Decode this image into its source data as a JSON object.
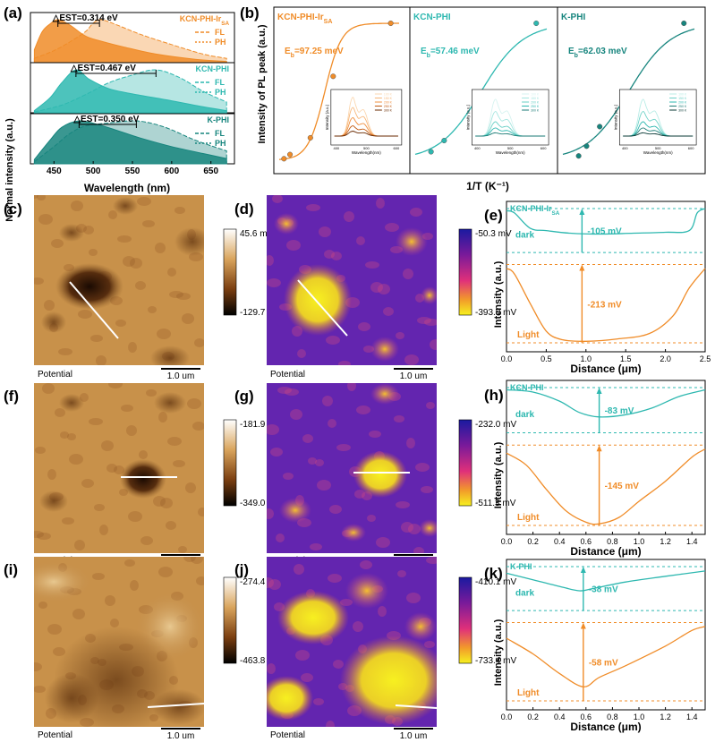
{
  "colors": {
    "orange": "#F08C28",
    "teal": "#2EB8B0",
    "dteal": "#17857E"
  },
  "panels": {
    "a": "(a)",
    "b": "(b)",
    "c": "(c)",
    "d": "(d)",
    "e": "(e)",
    "f": "(f)",
    "g": "(g)",
    "h": "(h)",
    "i": "(i)",
    "j": "(j)",
    "k": "(k)"
  },
  "chart_data": [
    {
      "type": "area",
      "panel": "a",
      "xlabel": "Wavelength (nm)",
      "ylabel": "Normal intensity (a.u.)",
      "xlim": [
        420,
        680
      ],
      "xticks": [
        450,
        500,
        550,
        600,
        650
      ],
      "legend": [
        "FL",
        "PH"
      ],
      "subplots": [
        {
          "name": "KCN-PHI-Ir",
          "sub": "SA",
          "est": "△EST=0.314 eV",
          "color": "#F08C28",
          "fl_peak": 455,
          "ph_peak": 508,
          "FL": [
            [
              425,
              0.3
            ],
            [
              435,
              0.72
            ],
            [
              445,
              0.9
            ],
            [
              455,
              1.0
            ],
            [
              470,
              0.88
            ],
            [
              490,
              0.62
            ],
            [
              510,
              0.5
            ],
            [
              540,
              0.36
            ],
            [
              580,
              0.2
            ],
            [
              630,
              0.08
            ],
            [
              670,
              0.03
            ]
          ],
          "PH": [
            [
              425,
              0.1
            ],
            [
              450,
              0.28
            ],
            [
              470,
              0.48
            ],
            [
              490,
              0.72
            ],
            [
              500,
              0.92
            ],
            [
              510,
              1.0
            ],
            [
              530,
              0.88
            ],
            [
              560,
              0.66
            ],
            [
              600,
              0.42
            ],
            [
              640,
              0.2
            ],
            [
              670,
              0.1
            ]
          ]
        },
        {
          "name": "KCN-PHI",
          "est": "△EST=0.467 eV",
          "color": "#2EB8B0",
          "fl_peak": 478,
          "ph_peak": 580,
          "FL": [
            [
              425,
              0.05
            ],
            [
              445,
              0.35
            ],
            [
              460,
              0.7
            ],
            [
              478,
              1.0
            ],
            [
              495,
              0.78
            ],
            [
              520,
              0.56
            ],
            [
              550,
              0.44
            ],
            [
              600,
              0.28
            ],
            [
              640,
              0.14
            ],
            [
              670,
              0.05
            ]
          ],
          "PH": [
            [
              425,
              0.02
            ],
            [
              460,
              0.18
            ],
            [
              490,
              0.42
            ],
            [
              520,
              0.7
            ],
            [
              550,
              0.88
            ],
            [
              580,
              1.0
            ],
            [
              610,
              0.82
            ],
            [
              640,
              0.5
            ],
            [
              670,
              0.25
            ]
          ]
        },
        {
          "name": "K-PHI",
          "est": "△EST=0.350 eV",
          "color": "#17857E",
          "fl_peak": 482,
          "ph_peak": 555,
          "FL": [
            [
              425,
              0.1
            ],
            [
              445,
              0.55
            ],
            [
              460,
              0.85
            ],
            [
              482,
              1.0
            ],
            [
              505,
              0.92
            ],
            [
              530,
              0.78
            ],
            [
              560,
              0.6
            ],
            [
              600,
              0.4
            ],
            [
              640,
              0.24
            ],
            [
              670,
              0.12
            ]
          ],
          "PH": [
            [
              425,
              0.05
            ],
            [
              450,
              0.4
            ],
            [
              470,
              0.7
            ],
            [
              490,
              0.88
            ],
            [
              520,
              0.95
            ],
            [
              555,
              1.0
            ],
            [
              590,
              0.86
            ],
            [
              630,
              0.55
            ],
            [
              670,
              0.3
            ]
          ]
        }
      ]
    },
    {
      "type": "scatter",
      "panel": "b",
      "ylabel": "Intensity of PL peak (a.u.)",
      "xlabel": "1/T (K⁻¹)",
      "subplots": [
        {
          "name": "KCN-PHI-Ir",
          "sub": "SA",
          "eb": "E",
          "ebsub": "b",
          "ebval": "=97.25 meV",
          "color": "#F08C28",
          "points": [
            [
              0.04,
              0.03
            ],
            [
              0.09,
              0.06
            ],
            [
              0.26,
              0.18
            ],
            [
              0.45,
              0.62
            ],
            [
              0.93,
              1.0
            ]
          ],
          "inset_legend": [
            "100 K",
            "150 K",
            "200 K",
            "250 K",
            "300 K"
          ],
          "inset_x": "Wavelength(nm)",
          "inset_y": "Intensity (a.u.)",
          "inset_ticks": [
            "400",
            "500",
            "600"
          ]
        },
        {
          "name": "KCN-PHI",
          "eb": "E",
          "ebsub": "b",
          "ebval": "=57.46 meV",
          "color": "#2EB8B0",
          "points": [
            [
              0.12,
              0.08
            ],
            [
              0.22,
              0.16
            ],
            [
              0.52,
              0.48
            ],
            [
              0.92,
              1.0
            ]
          ],
          "inset_legend": [
            "100 K",
            "150 K",
            "200 K",
            "250 K",
            "300 K"
          ],
          "inset_x": "Wavelength(nm)",
          "inset_y": "Intensity (a.u.)",
          "inset_ticks": [
            "400",
            "500",
            "600"
          ]
        },
        {
          "name": "K-PHI",
          "eb": "E",
          "ebsub": "b",
          "ebval": "=62.03 meV",
          "color": "#17857E",
          "points": [
            [
              0.12,
              0.05
            ],
            [
              0.18,
              0.12
            ],
            [
              0.28,
              0.26
            ],
            [
              0.45,
              0.48
            ],
            [
              0.92,
              1.0
            ]
          ],
          "inset_legend": [
            "100 K",
            "150 K",
            "200 K",
            "250 K",
            "300 K"
          ],
          "inset_x": "Wavelength(nm)",
          "inset_y": "Intensity (a.u.)",
          "inset_ticks": [
            "400",
            "500",
            "600"
          ]
        }
      ]
    },
    {
      "type": "line",
      "panel": "e",
      "name": "KCN-PHI-Ir",
      "sub": "SA",
      "xlabel": "Distance (μm)",
      "ylabel": "Intensity (a.u.)",
      "xlim": [
        0,
        2.5
      ],
      "xticks": [
        "0.0",
        "0.5",
        "1.0",
        "1.5",
        "2.0",
        "2.5"
      ],
      "dark_label": "dark",
      "light_label": "Light",
      "dark_delta": "-105 mV",
      "light_delta": "-213 mV",
      "arrow_x": 0.95,
      "dark": [
        [
          0,
          0.95
        ],
        [
          0.1,
          0.9
        ],
        [
          0.3,
          0.55
        ],
        [
          0.5,
          0.5
        ],
        [
          0.8,
          0.44
        ],
        [
          1.2,
          0.42
        ],
        [
          1.6,
          0.44
        ],
        [
          2.0,
          0.46
        ],
        [
          2.3,
          0.5
        ],
        [
          2.4,
          0.9
        ],
        [
          2.5,
          1.0
        ]
      ],
      "light": [
        [
          0,
          0.95
        ],
        [
          0.1,
          0.88
        ],
        [
          0.3,
          0.5
        ],
        [
          0.5,
          0.15
        ],
        [
          0.7,
          0.04
        ],
        [
          1.0,
          0.02
        ],
        [
          1.4,
          0.05
        ],
        [
          1.8,
          0.12
        ],
        [
          2.1,
          0.35
        ],
        [
          2.3,
          0.7
        ],
        [
          2.5,
          0.95
        ]
      ]
    },
    {
      "type": "line",
      "panel": "h",
      "name": "KCN-PHI",
      "xlabel": "Distance (μm)",
      "ylabel": "Intensity (a.u.)",
      "xlim": [
        0,
        1.5
      ],
      "xticks": [
        "0.0",
        "0.2",
        "0.4",
        "0.6",
        "0.8",
        "1.0",
        "1.2",
        "1.4"
      ],
      "dark_label": "dark",
      "light_label": "Light",
      "dark_delta": "-83 mV",
      "light_delta": "-145 mV",
      "arrow_x": 0.7,
      "dark": [
        [
          0,
          0.95
        ],
        [
          0.2,
          0.9
        ],
        [
          0.4,
          0.7
        ],
        [
          0.55,
          0.45
        ],
        [
          0.7,
          0.35
        ],
        [
          0.9,
          0.4
        ],
        [
          1.1,
          0.55
        ],
        [
          1.3,
          0.8
        ],
        [
          1.5,
          0.95
        ]
      ],
      "light": [
        [
          0,
          0.9
        ],
        [
          0.15,
          0.75
        ],
        [
          0.3,
          0.45
        ],
        [
          0.45,
          0.18
        ],
        [
          0.6,
          0.04
        ],
        [
          0.7,
          0.02
        ],
        [
          0.85,
          0.1
        ],
        [
          1.0,
          0.3
        ],
        [
          1.2,
          0.55
        ],
        [
          1.4,
          0.85
        ],
        [
          1.5,
          0.95
        ]
      ]
    },
    {
      "type": "line",
      "panel": "k",
      "name": "K-PHI",
      "xlabel": "Distance (μm)",
      "ylabel": "Intensity (a.u.)",
      "xlim": [
        0,
        1.5
      ],
      "xticks": [
        "0.0",
        "0.2",
        "0.4",
        "0.6",
        "0.8",
        "1.0",
        "1.2",
        "1.4"
      ],
      "dark_label": "dark",
      "light_label": "Light",
      "dark_delta": "-38 mV",
      "light_delta": "-58 mV",
      "arrow_x": 0.58,
      "dark": [
        [
          0,
          0.85
        ],
        [
          0.2,
          0.7
        ],
        [
          0.4,
          0.55
        ],
        [
          0.55,
          0.45
        ],
        [
          0.65,
          0.5
        ],
        [
          0.9,
          0.65
        ],
        [
          1.2,
          0.78
        ],
        [
          1.5,
          0.9
        ]
      ],
      "light": [
        [
          0,
          0.8
        ],
        [
          0.2,
          0.6
        ],
        [
          0.4,
          0.35
        ],
        [
          0.58,
          0.18
        ],
        [
          0.7,
          0.3
        ],
        [
          0.9,
          0.45
        ],
        [
          1.2,
          0.7
        ],
        [
          1.4,
          0.9
        ],
        [
          1.5,
          0.95
        ]
      ]
    }
  ],
  "maps": [
    {
      "panel": "c",
      "kind": "brown",
      "caption": "Potential",
      "scale": "1.0 um",
      "cmax": "45.6 mV",
      "cmin": "-129.7 mV"
    },
    {
      "panel": "d",
      "kind": "plasma",
      "caption": "Potential",
      "scale": "1.0 um",
      "cmax": "-50.3 mV",
      "cmin": "-393.0 mV"
    },
    {
      "panel": "f",
      "kind": "brown",
      "caption": "Potential",
      "scale": "1.0 um",
      "cmax": "-181.9 mV",
      "cmin": "-349.0 mV"
    },
    {
      "panel": "g",
      "kind": "plasma",
      "caption": "Potential",
      "scale": "1.0 um",
      "cmax": "-232.0 mV",
      "cmin": "-511.3 mV"
    },
    {
      "panel": "i",
      "kind": "brown",
      "caption": "Potential",
      "scale": "1.0 um",
      "cmax": "-274.4 mV",
      "cmin": "-463.8 mV"
    },
    {
      "panel": "j",
      "kind": "plasma",
      "caption": "Potential",
      "scale": "1.0 um",
      "cmax": "-410.1 mV",
      "cmin": "-733.4 mV"
    }
  ]
}
